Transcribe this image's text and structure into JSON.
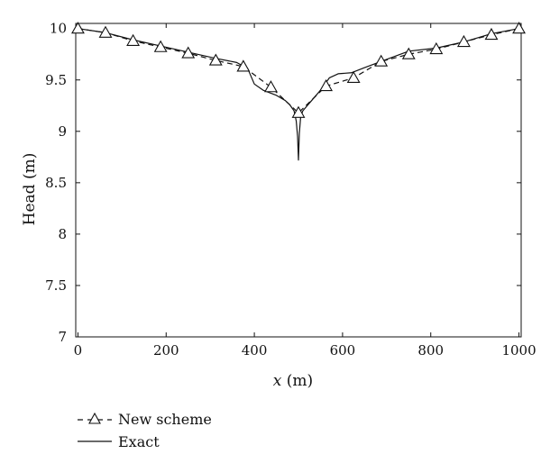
{
  "chart_data": {
    "type": "line",
    "xlabel_var": "x",
    "xlabel_unit": " (m)",
    "ylabel": "Head (m)",
    "xlim": [
      -5,
      1005
    ],
    "ylim": [
      7,
      10.05
    ],
    "x_ticks": [
      0,
      200,
      400,
      600,
      800,
      1000
    ],
    "x_tick_labels": [
      "0",
      "200",
      "400",
      "600",
      "800",
      "1000"
    ],
    "y_ticks": [
      7,
      7.5,
      8,
      8.5,
      9,
      9.5,
      10
    ],
    "y_tick_labels": [
      "7",
      "7.5",
      "8",
      "8.5",
      "9",
      "9.5",
      "10"
    ],
    "grid": false,
    "legend_position": "bottom-left",
    "series": [
      {
        "name": "New scheme",
        "style": "dashed-triangle-markers",
        "x": [
          0,
          62.5,
          125,
          187.5,
          250,
          312.5,
          375,
          437.5,
          500,
          562.5,
          625,
          687.5,
          750,
          812.5,
          875,
          937.5,
          1000
        ],
        "y": [
          10.0,
          9.96,
          9.88,
          9.82,
          9.76,
          9.69,
          9.63,
          9.43,
          9.18,
          9.44,
          9.52,
          9.68,
          9.75,
          9.8,
          9.87,
          9.94,
          10.0
        ]
      },
      {
        "name": "Exact",
        "style": "solid",
        "x": [
          0,
          62.5,
          125,
          187.5,
          250,
          312.5,
          360,
          385,
          400,
          420,
          450,
          470,
          480,
          490,
          495,
          498,
          500,
          502,
          505,
          510,
          520,
          530,
          550,
          570,
          590,
          620,
          650,
          687.5,
          750,
          812.5,
          875,
          937.5,
          1000
        ],
        "y": [
          10.0,
          9.96,
          9.89,
          9.83,
          9.77,
          9.71,
          9.67,
          9.61,
          9.46,
          9.4,
          9.35,
          9.3,
          9.26,
          9.2,
          9.1,
          8.95,
          8.72,
          8.98,
          9.14,
          9.2,
          9.25,
          9.3,
          9.4,
          9.52,
          9.56,
          9.57,
          9.62,
          9.68,
          9.78,
          9.81,
          9.87,
          9.95,
          10.0
        ]
      }
    ]
  }
}
